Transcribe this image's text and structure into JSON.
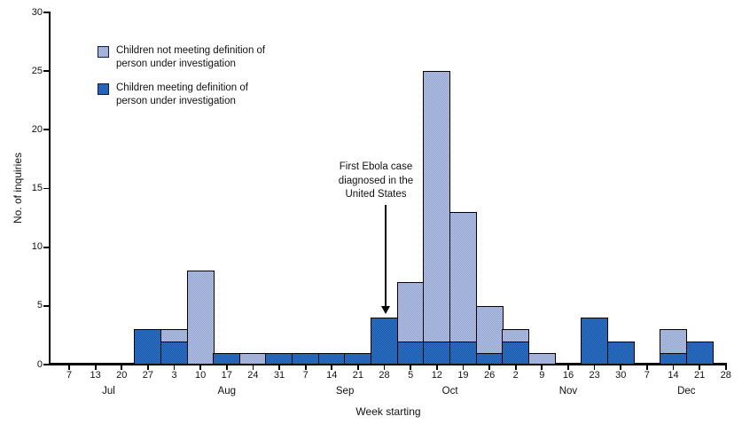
{
  "chart_data": {
    "type": "bar",
    "stacked": true,
    "title": "",
    "xlabel": "Week starting",
    "ylabel": "No. of inquiries",
    "ylim": [
      0,
      30
    ],
    "yticks": [
      0,
      5,
      10,
      15,
      20,
      25,
      30
    ],
    "categories": [
      "7",
      "13",
      "20",
      "27",
      "3",
      "10",
      "17",
      "24",
      "31",
      "7",
      "14",
      "21",
      "28",
      "5",
      "12",
      "19",
      "26",
      "2",
      "9",
      "16",
      "23",
      "30",
      "7",
      "14",
      "21",
      "28"
    ],
    "month_groups": [
      {
        "label": "Jul",
        "start": 0,
        "count": 4
      },
      {
        "label": "Aug",
        "start": 4,
        "count": 5
      },
      {
        "label": "Sep",
        "start": 9,
        "count": 4
      },
      {
        "label": "Oct",
        "start": 13,
        "count": 4
      },
      {
        "label": "Nov",
        "start": 17,
        "count": 5
      },
      {
        "label": "Dec",
        "start": 22,
        "count": 4
      }
    ],
    "series": [
      {
        "name": "Children meeting definition of person under investigation",
        "color_key": "meeting",
        "color": "#1c64ba",
        "values": [
          0,
          0,
          0,
          3,
          2,
          0,
          1,
          0,
          1,
          1,
          1,
          1,
          4,
          2,
          2,
          2,
          1,
          2,
          0,
          0,
          4,
          2,
          0,
          1,
          2,
          0
        ]
      },
      {
        "name": "Children not meeting definition of person under investigation",
        "color_key": "not_meeting",
        "color": "#a3b2dc",
        "values": [
          0,
          0,
          0,
          0,
          1,
          8,
          0,
          1,
          0,
          0,
          0,
          0,
          0,
          5,
          23,
          11,
          4,
          1,
          1,
          0,
          0,
          0,
          0,
          2,
          0,
          0
        ]
      }
    ],
    "legend": [
      {
        "lines": [
          "Children not meeting definition of",
          "person under investigation"
        ],
        "color_key": "not_meeting"
      },
      {
        "lines": [
          "Children meeting definition of",
          "person under investigation"
        ],
        "color_key": "meeting"
      }
    ],
    "annotation": {
      "lines": [
        "First Ebola case",
        "diagnosed in the",
        "United States"
      ],
      "target_category_index": 12
    },
    "colors": {
      "axis": "#000000",
      "text": "#111111"
    },
    "legend_position": "upper-left-inside",
    "grid": false
  }
}
